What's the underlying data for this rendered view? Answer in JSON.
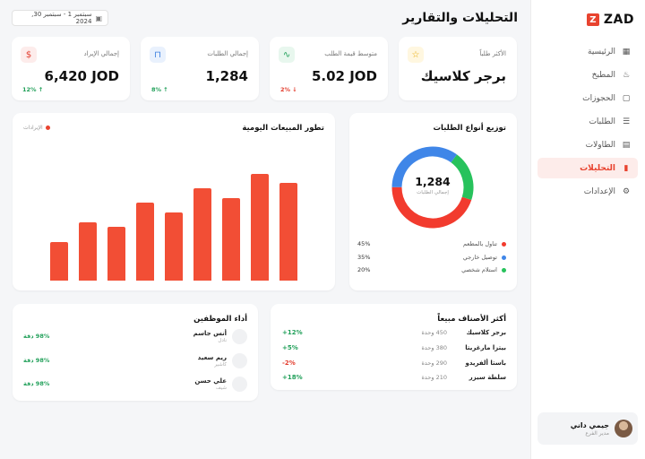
{
  "brand": {
    "name": "ZAD",
    "mark": "Z"
  },
  "sidebar": {
    "items": [
      {
        "label": "الرئيسية",
        "icon": "grid-icon",
        "glyph": "▦",
        "active": false
      },
      {
        "label": "المطبخ",
        "icon": "chef-hat-icon",
        "glyph": "♨",
        "active": false
      },
      {
        "label": "الحجوزات",
        "icon": "calendar-icon",
        "glyph": "▢",
        "active": false
      },
      {
        "label": "الطلبات",
        "icon": "clipboard-icon",
        "glyph": "☰",
        "active": false
      },
      {
        "label": "الطاولات",
        "icon": "table-icon",
        "glyph": "▤",
        "active": false
      },
      {
        "label": "التحليلات",
        "icon": "bar-chart-icon",
        "glyph": "▮",
        "active": true
      },
      {
        "label": "الإعدادات",
        "icon": "gear-icon",
        "glyph": "⚙",
        "active": false
      }
    ],
    "user": {
      "name": "جيمي داني",
      "role": "مدير الفرع"
    }
  },
  "header": {
    "title": "التحليلات والتقارير",
    "date_range": "سبتمبر 1 - سبتمبر 30, 2024"
  },
  "kpis": [
    {
      "label": "الأكثر طلباً",
      "value": "برجر كلاسيك",
      "icon": "star-icon",
      "glyph": "☆",
      "color": "#e9a800",
      "bg": "#fff7e0",
      "delta": ""
    },
    {
      "label": "متوسط قيمة الطلب",
      "value": "5.02 JOD",
      "icon": "trend-icon",
      "glyph": "∿",
      "color": "#22a05a",
      "bg": "#e8f7ee",
      "delta": "2% ↓",
      "delta_dir": "down"
    },
    {
      "label": "إجمالي الطلبات",
      "value": "1,284",
      "icon": "bag-icon",
      "glyph": "⊓",
      "color": "#3b7fe0",
      "bg": "#e9f1fd",
      "delta": "8% ↑",
      "delta_dir": "up"
    },
    {
      "label": "إجمالي الإيراد",
      "value": "6,420 JOD",
      "icon": "dollar-icon",
      "glyph": "$",
      "color": "#e33d2e",
      "bg": "#fdeceb",
      "delta": "12% ↑",
      "delta_dir": "up"
    }
  ],
  "daily_sales": {
    "title": "تطور المبيعات اليومية",
    "legend": "الإيرادات"
  },
  "chart_data": {
    "type": "bar",
    "values": [
      40,
      60,
      55,
      80,
      70,
      95,
      85,
      110,
      100
    ],
    "series": [
      {
        "name": "الإيرادات",
        "values": [
          40,
          60,
          55,
          80,
          70,
          95,
          85,
          110,
          100
        ]
      }
    ],
    "ylim": [
      0,
      140
    ],
    "grid": false,
    "legend_position": "top-left"
  },
  "order_types": {
    "title": "توزيع أنواع الطلبات",
    "total": "1,284",
    "total_label": "إجمالي الطلبات",
    "items": [
      {
        "label": "تناول بالمطعم",
        "percent": "45%",
        "value": 45,
        "color": "#f23b2e"
      },
      {
        "label": "توصيل خارجي",
        "percent": "35%",
        "value": 35,
        "color": "#3f86e8"
      },
      {
        "label": "استلام شخصي",
        "percent": "20%",
        "value": 20,
        "color": "#27c25c"
      }
    ]
  },
  "top_items": {
    "title": "أكثر الأصناف مبيعاً",
    "rows": [
      {
        "name": "برجر كلاسيك",
        "units": "450 وحدة",
        "change": "+12%",
        "dir": "up"
      },
      {
        "name": "بيتزا مارغريتا",
        "units": "380 وحدة",
        "change": "+5%",
        "dir": "up"
      },
      {
        "name": "باستا ألفريدو",
        "units": "290 وحدة",
        "change": "-2%",
        "dir": "down"
      },
      {
        "name": "سلطة سيزر",
        "units": "210 وحدة",
        "change": "+18%",
        "dir": "up"
      }
    ]
  },
  "staff": {
    "title": "أداء الموظفين",
    "rows": [
      {
        "name": "أنس جاسم",
        "role": "نادل",
        "accuracy": "98% دقة"
      },
      {
        "name": "ريم سعيد",
        "role": "كاشير",
        "accuracy": "98% دقة"
      },
      {
        "name": "علي حسن",
        "role": "شيف",
        "accuracy": "98% دقة"
      }
    ]
  }
}
